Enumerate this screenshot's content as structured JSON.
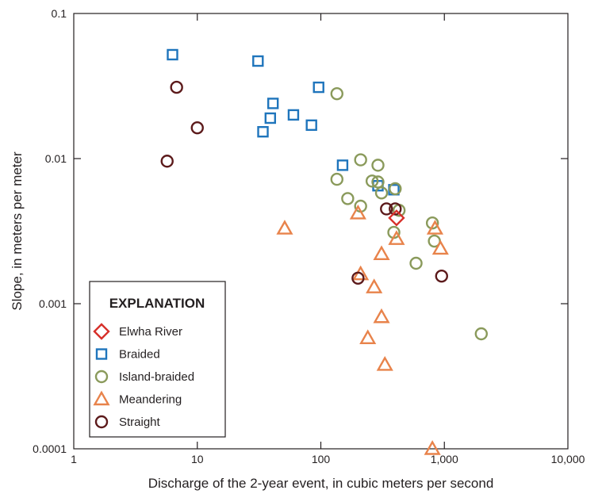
{
  "chart_data": {
    "type": "scatter",
    "xlabel": "Discharge of the 2-year event, in cubic meters per second",
    "ylabel": "Slope, in meters per meter",
    "xscale": "log",
    "yscale": "log",
    "xlim": [
      1,
      10000
    ],
    "ylim": [
      0.0001,
      0.1
    ],
    "x_ticks": [
      1,
      10,
      100,
      1000,
      10000
    ],
    "x_tick_labels": [
      "1",
      "10",
      "100",
      "1,000",
      "10,000"
    ],
    "y_ticks": [
      0.0001,
      0.001,
      0.01,
      0.1
    ],
    "y_tick_labels": [
      "0.0001",
      "0.001",
      "0.01",
      "0.1"
    ],
    "grid": false,
    "legend": {
      "title": "EXPLANATION",
      "placement": "bottom-left"
    },
    "series": [
      {
        "name": "Elwha River",
        "marker": "diamond",
        "color": "#d7302a",
        "points": [
          [
            410,
            0.0039
          ]
        ]
      },
      {
        "name": "Braided",
        "marker": "square",
        "color": "#1f75bc",
        "points": [
          [
            6.3,
            0.052
          ],
          [
            31,
            0.047
          ],
          [
            96,
            0.031
          ],
          [
            41,
            0.024
          ],
          [
            39,
            0.019
          ],
          [
            60,
            0.02
          ],
          [
            34,
            0.0153
          ],
          [
            84,
            0.017
          ],
          [
            150,
            0.009
          ],
          [
            290,
            0.0065
          ],
          [
            390,
            0.0061
          ]
        ]
      },
      {
        "name": "Island-braided",
        "marker": "circle",
        "color": "#8a9a5b",
        "points": [
          [
            135,
            0.028
          ],
          [
            210,
            0.0098
          ],
          [
            290,
            0.009
          ],
          [
            135,
            0.0072
          ],
          [
            260,
            0.007
          ],
          [
            290,
            0.0069
          ],
          [
            400,
            0.0062
          ],
          [
            165,
            0.0053
          ],
          [
            310,
            0.0058
          ],
          [
            210,
            0.0047
          ],
          [
            430,
            0.0044
          ],
          [
            390,
            0.0031
          ],
          [
            590,
            0.0019
          ],
          [
            800,
            0.0036
          ],
          [
            830,
            0.0027
          ],
          [
            1990,
            0.00062
          ]
        ]
      },
      {
        "name": "Meandering",
        "marker": "triangle",
        "color": "#e8834b",
        "points": [
          [
            51,
            0.0033
          ],
          [
            200,
            0.0042
          ],
          [
            410,
            0.0028
          ],
          [
            310,
            0.0022
          ],
          [
            840,
            0.0033
          ],
          [
            930,
            0.0024
          ],
          [
            210,
            0.0016
          ],
          [
            270,
            0.0013
          ],
          [
            310,
            0.00081
          ],
          [
            240,
            0.00058
          ],
          [
            330,
            0.00038
          ],
          [
            800,
            0.0001
          ]
        ]
      },
      {
        "name": "Straight",
        "marker": "circle",
        "color": "#5c1a1b",
        "points": [
          [
            6.8,
            0.031
          ],
          [
            10,
            0.0163
          ],
          [
            5.7,
            0.0096
          ],
          [
            340,
            0.0045
          ],
          [
            400,
            0.0045
          ],
          [
            200,
            0.0015
          ],
          [
            950,
            0.00155
          ]
        ]
      }
    ]
  }
}
